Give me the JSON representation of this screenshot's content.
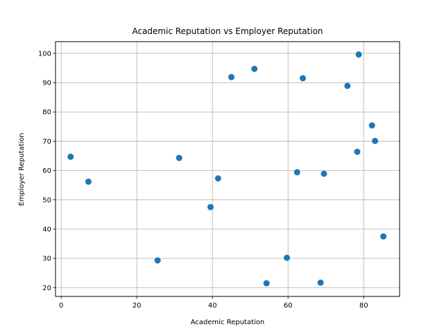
{
  "chart_data": {
    "type": "scatter",
    "title": "Academic Reputation vs Employer Reputation",
    "xlabel": "Academic Reputation",
    "ylabel": "Employer Reputation",
    "xlim": [
      -1.5,
      89.5
    ],
    "ylim": [
      17,
      104
    ],
    "xticks": [
      0,
      20,
      40,
      60,
      80
    ],
    "yticks": [
      20,
      30,
      40,
      50,
      60,
      70,
      80,
      90,
      100
    ],
    "grid": true,
    "colors": {
      "point": "#1f77b4",
      "grid": "#b0b0b0",
      "axis": "#000000"
    },
    "series": [
      {
        "points": [
          {
            "x": 2.5,
            "y": 64.7
          },
          {
            "x": 7.2,
            "y": 56.2
          },
          {
            "x": 25.5,
            "y": 29.3
          },
          {
            "x": 31.2,
            "y": 64.3
          },
          {
            "x": 39.5,
            "y": 47.5
          },
          {
            "x": 41.5,
            "y": 57.3
          },
          {
            "x": 45.0,
            "y": 91.9
          },
          {
            "x": 51.1,
            "y": 94.7
          },
          {
            "x": 54.3,
            "y": 21.5
          },
          {
            "x": 59.7,
            "y": 30.2
          },
          {
            "x": 62.4,
            "y": 59.4
          },
          {
            "x": 63.9,
            "y": 91.5
          },
          {
            "x": 68.6,
            "y": 21.7
          },
          {
            "x": 69.5,
            "y": 58.9
          },
          {
            "x": 75.7,
            "y": 88.9
          },
          {
            "x": 78.3,
            "y": 66.4
          },
          {
            "x": 78.7,
            "y": 99.6
          },
          {
            "x": 82.2,
            "y": 75.4
          },
          {
            "x": 83.0,
            "y": 70.1
          },
          {
            "x": 85.2,
            "y": 37.5
          }
        ]
      }
    ]
  }
}
